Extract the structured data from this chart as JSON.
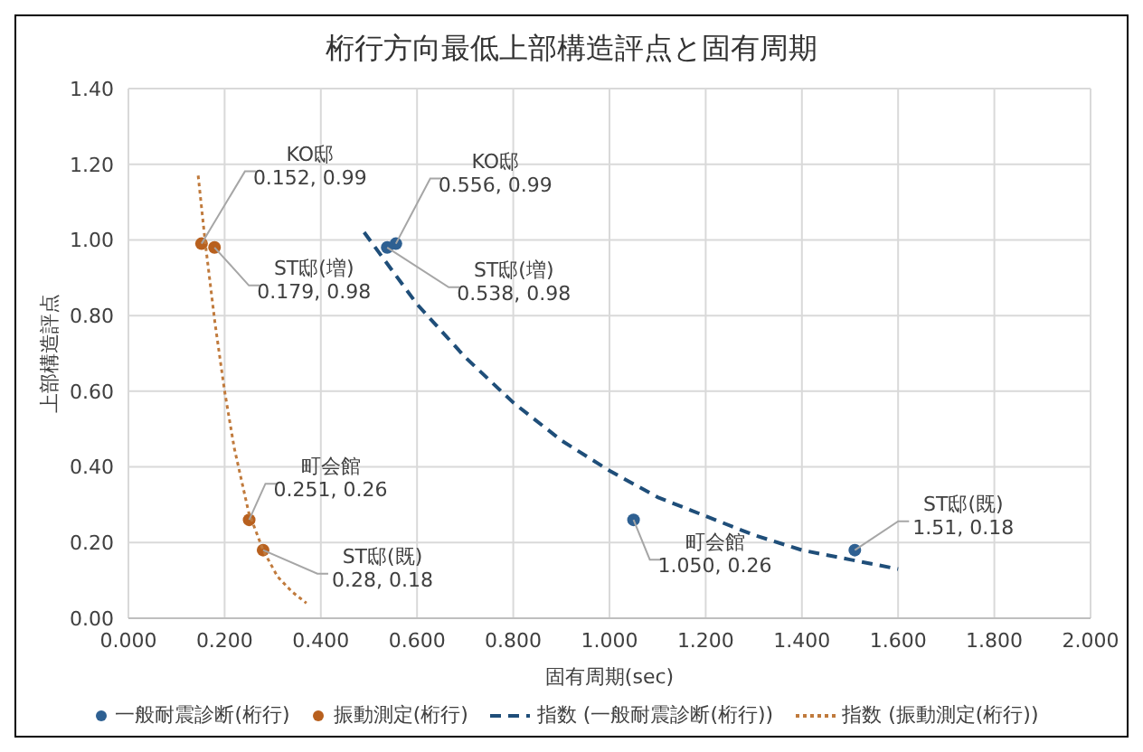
{
  "chart_data": {
    "type": "scatter",
    "title": "桁行方向最低上部構造評点と固有周期",
    "xlabel": "固有周期(sec)",
    "ylabel": "上部構造評点",
    "xlim": [
      0,
      2
    ],
    "xticks": [
      {
        "value": 0,
        "label": "0.000"
      },
      {
        "value": 0.2,
        "label": "0.200"
      },
      {
        "value": 0.4,
        "label": "0.400"
      },
      {
        "value": 0.6,
        "label": "0.600"
      },
      {
        "value": 0.8,
        "label": "0.800"
      },
      {
        "value": 1,
        "label": "1.000"
      },
      {
        "value": 1.2,
        "label": "1.200"
      },
      {
        "value": 1.4,
        "label": "1.400"
      },
      {
        "value": 1.6,
        "label": "1.600"
      },
      {
        "value": 1.8,
        "label": "1.800"
      },
      {
        "value": 2,
        "label": "2.000"
      }
    ],
    "ylim": [
      0,
      1.4
    ],
    "yticks": [
      {
        "value": 0,
        "label": "0.00"
      },
      {
        "value": 0.2,
        "label": "0.20"
      },
      {
        "value": 0.4,
        "label": "0.40"
      },
      {
        "value": 0.6,
        "label": "0.60"
      },
      {
        "value": 0.8,
        "label": "0.80"
      },
      {
        "value": 1,
        "label": "1.00"
      },
      {
        "value": 1.2,
        "label": "1.20"
      },
      {
        "value": 1.4,
        "label": "1.40"
      }
    ],
    "grid": true,
    "legend": "bottom",
    "marker": "circle",
    "series": [
      {
        "name": "一般耐震診断(桁行)",
        "color": "#2e6092",
        "x": [
          0.556,
          0.538,
          1.05,
          1.51
        ],
        "values": [
          0.99,
          0.98,
          0.26,
          0.18
        ],
        "value_labels": [
          "KO邸\n0.556, 0.99",
          "ST邸(増)\n0.538, 0.98",
          "町会館\n1.050, 0.26",
          "ST邸(既)\n1.51, 0.18"
        ]
      },
      {
        "name": "振動測定(桁行)",
        "color": "#b8601e",
        "x": [
          0.152,
          0.179,
          0.251,
          0.28
        ],
        "values": [
          0.99,
          0.98,
          0.26,
          0.18
        ],
        "value_labels": [
          "KO邸\n0.152, 0.99",
          "ST邸(増)\n0.179, 0.98",
          "町会館\n0.251, 0.26",
          "ST邸(既)\n0.28, 0.18"
        ]
      },
      {
        "name": "指数 (一般耐震診断(桁行))",
        "type": "line",
        "line_style": "dashed",
        "marker": "none",
        "color": "#1f4e79",
        "x": [
          0.49,
          0.6,
          0.7,
          0.8,
          0.9,
          1.0,
          1.1,
          1.2,
          1.3,
          1.4,
          1.5,
          1.6
        ],
        "values": [
          1.02,
          0.83,
          0.69,
          0.57,
          0.47,
          0.39,
          0.32,
          0.27,
          0.22,
          0.18,
          0.155,
          0.13
        ]
      },
      {
        "name": "指数 (振動測定(桁行))",
        "type": "line",
        "line_style": "dotted",
        "marker": "none",
        "color": "#c07a3c",
        "x": [
          0.145,
          0.16,
          0.18,
          0.2,
          0.22,
          0.25,
          0.28,
          0.31,
          0.34,
          0.37
        ],
        "values": [
          1.17,
          0.99,
          0.78,
          0.6,
          0.45,
          0.28,
          0.18,
          0.11,
          0.07,
          0.04
        ]
      }
    ]
  }
}
